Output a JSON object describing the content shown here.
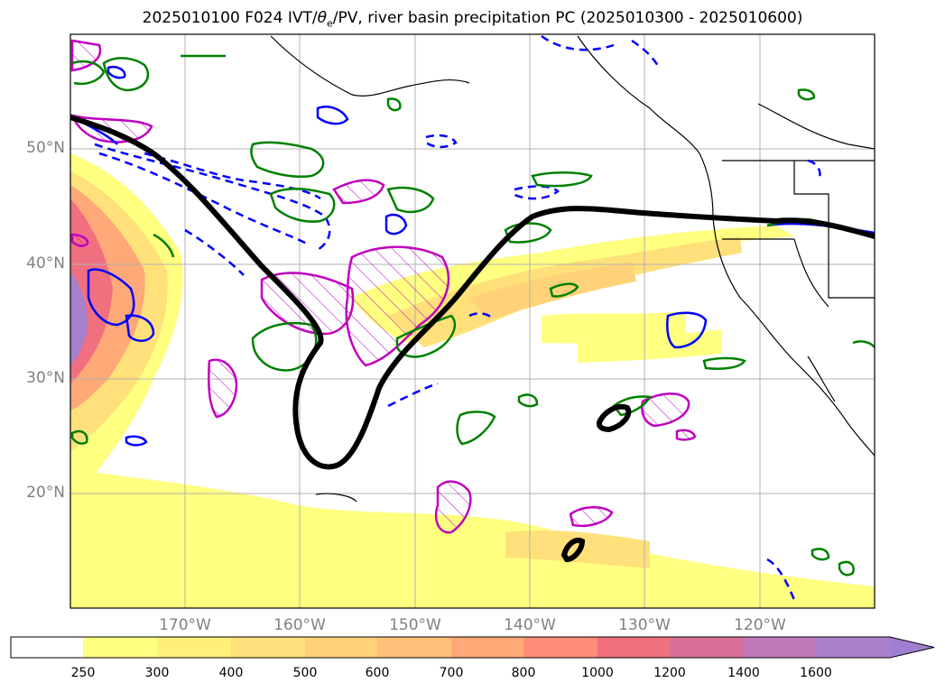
{
  "title": {
    "prefix": "2025010100 F024 IVT/",
    "theta": "θ",
    "sub": "e",
    "suffix": "/PV, river basin precipitation PC (2025010300 - 2025010600)"
  },
  "map": {
    "projection": "plate-carree",
    "lon_range": [
      -180,
      -110
    ],
    "lat_range": [
      10,
      60
    ],
    "gridlines": true,
    "lat_ticks": [
      {
        "value": 20,
        "label": "20°N"
      },
      {
        "value": 30,
        "label": "30°N"
      },
      {
        "value": 40,
        "label": "40°N"
      },
      {
        "value": 50,
        "label": "50°N"
      }
    ],
    "lon_ticks": [
      {
        "value": -170,
        "label": "170°W"
      },
      {
        "value": -160,
        "label": "160°W"
      },
      {
        "value": -150,
        "label": "150°W"
      },
      {
        "value": -140,
        "label": "140°W"
      },
      {
        "value": -130,
        "label": "130°W"
      },
      {
        "value": -120,
        "label": "120°W"
      }
    ]
  },
  "colorbar": {
    "extend": "max",
    "levels": [
      250,
      300,
      400,
      500,
      600,
      700,
      800,
      1000,
      1200,
      1400,
      1600
    ],
    "labels": [
      "250",
      "300",
      "400",
      "500",
      "600",
      "700",
      "800",
      "1000",
      "1200",
      "1400",
      "1600"
    ],
    "colors": [
      "#ffff80",
      "#fff07a",
      "#ffe07a",
      "#ffd27a",
      "#ffc07a",
      "#ffa878",
      "#ff8c78",
      "#f07080",
      "#d8709a",
      "#c078b8",
      "#a880cc",
      "#a07ed0"
    ]
  },
  "colors": {
    "pv_contour": "#000000",
    "theta_e_contour": "#008000",
    "dashed_contour": "#0000ff",
    "hatched_region": "#c000c0",
    "coastline": "#000000"
  }
}
